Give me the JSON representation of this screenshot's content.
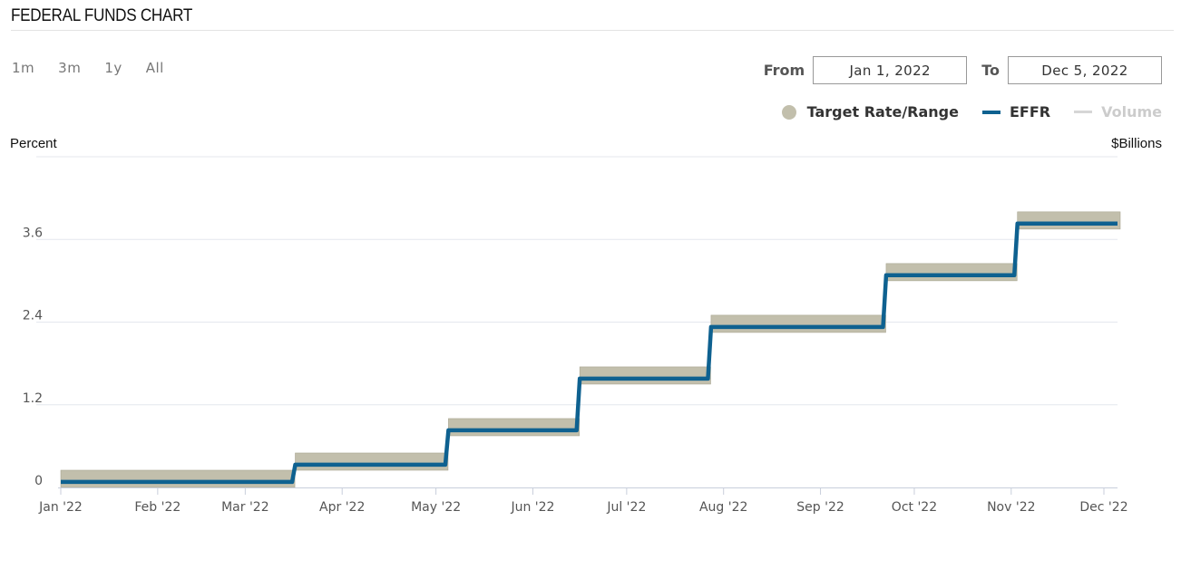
{
  "header": {
    "title": "FEDERAL FUNDS CHART"
  },
  "range_buttons": [
    "1m",
    "3m",
    "1y",
    "All"
  ],
  "date_range": {
    "from_label": "From",
    "from_value": "Jan 1, 2022",
    "to_label": "To",
    "to_value": "Dec 5, 2022"
  },
  "colors": {
    "target": "#c2bfac",
    "effr": "#0e6190",
    "volume": "#d6d6d6",
    "grid": "#e4e7ee"
  },
  "chart_data": {
    "type": "line",
    "ylabel": "Percent",
    "y2label": "$Billions",
    "ylim": [
      0,
      4.8
    ],
    "y_ticks": [
      0,
      1.2,
      2.4,
      3.6
    ],
    "y_tick_labels": [
      "0",
      "1.2",
      "2.4",
      "3.6"
    ],
    "xlim": [
      "2022-01-01",
      "2022-12-05"
    ],
    "x_ticks": [
      {
        "date": "2022-01-01",
        "label": "Jan '22"
      },
      {
        "date": "2022-02-01",
        "label": "Feb '22"
      },
      {
        "date": "2022-03-01",
        "label": "Mar '22"
      },
      {
        "date": "2022-04-01",
        "label": "Apr '22"
      },
      {
        "date": "2022-05-01",
        "label": "May '22"
      },
      {
        "date": "2022-06-01",
        "label": "Jun '22"
      },
      {
        "date": "2022-07-01",
        "label": "Jul '22"
      },
      {
        "date": "2022-08-01",
        "label": "Aug '22"
      },
      {
        "date": "2022-09-01",
        "label": "Sep '22"
      },
      {
        "date": "2022-10-01",
        "label": "Oct '22"
      },
      {
        "date": "2022-11-01",
        "label": "Nov '22"
      },
      {
        "date": "2022-12-01",
        "label": "Dec '22"
      }
    ],
    "legend": [
      {
        "name": "Target Rate/Range",
        "key": "target"
      },
      {
        "name": "EFFR",
        "key": "effr"
      },
      {
        "name": "Volume",
        "key": "volume"
      }
    ],
    "target_range": [
      {
        "start": "2022-01-01",
        "end": "2022-03-16",
        "low": 0.0,
        "high": 0.25
      },
      {
        "start": "2022-03-17",
        "end": "2022-05-04",
        "low": 0.25,
        "high": 0.5
      },
      {
        "start": "2022-05-05",
        "end": "2022-06-15",
        "low": 0.75,
        "high": 1.0
      },
      {
        "start": "2022-06-16",
        "end": "2022-07-27",
        "low": 1.5,
        "high": 1.75
      },
      {
        "start": "2022-07-28",
        "end": "2022-09-21",
        "low": 2.25,
        "high": 2.5
      },
      {
        "start": "2022-09-22",
        "end": "2022-11-02",
        "low": 3.0,
        "high": 3.25
      },
      {
        "start": "2022-11-03",
        "end": "2022-12-05",
        "low": 3.75,
        "high": 4.0
      }
    ],
    "effr": [
      {
        "start": "2022-01-01",
        "end": "2022-03-16",
        "value": 0.08
      },
      {
        "start": "2022-03-17",
        "end": "2022-05-04",
        "value": 0.33
      },
      {
        "start": "2022-05-05",
        "end": "2022-06-15",
        "value": 0.83
      },
      {
        "start": "2022-06-16",
        "end": "2022-07-27",
        "value": 1.58
      },
      {
        "start": "2022-07-28",
        "end": "2022-09-21",
        "value": 2.33
      },
      {
        "start": "2022-09-22",
        "end": "2022-11-02",
        "value": 3.08
      },
      {
        "start": "2022-11-03",
        "end": "2022-12-05",
        "value": 3.83
      }
    ]
  }
}
